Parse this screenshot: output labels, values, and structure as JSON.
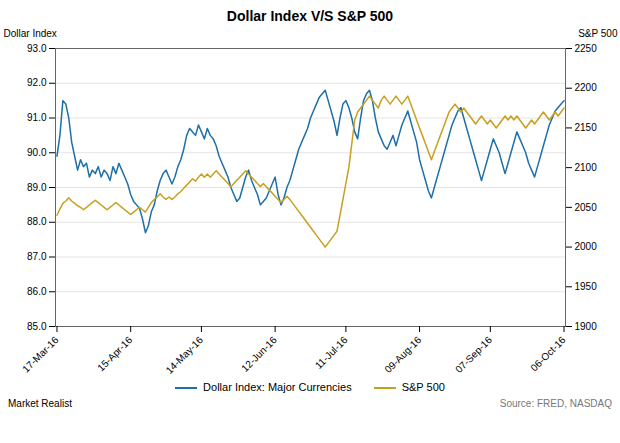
{
  "chart_data": {
    "type": "line",
    "title": "Dollar Index V/S S&P 500",
    "ylabel": "Dollar Index",
    "y2label": "S&P 500",
    "annotations": [
      "Market Realist",
      "Source: FRED, NASDAQ"
    ],
    "legend": "bottom",
    "grid": true,
    "ylim": [
      85.0,
      93.0
    ],
    "yticks": [
      {
        "value": 85.0,
        "label": "85.0"
      },
      {
        "value": 86.0,
        "label": "86.0"
      },
      {
        "value": 87.0,
        "label": "87.0"
      },
      {
        "value": 88.0,
        "label": "88.0"
      },
      {
        "value": 89.0,
        "label": "89.0"
      },
      {
        "value": 90.0,
        "label": "90.0"
      },
      {
        "value": 91.0,
        "label": "91.0"
      },
      {
        "value": 92.0,
        "label": "92.0"
      },
      {
        "value": 93.0,
        "label": "93.0"
      }
    ],
    "y2lim": [
      1900,
      2250
    ],
    "y2ticks": [
      1900,
      1950,
      2000,
      2050,
      2100,
      2150,
      2200,
      2250
    ],
    "categories": [
      "17-Mar-16",
      null,
      null,
      null,
      null,
      null,
      null,
      null,
      null,
      null,
      null,
      null,
      null,
      null,
      null,
      null,
      null,
      null,
      null,
      null,
      null,
      null,
      null,
      null,
      null,
      "15-Apr-16",
      null,
      null,
      null,
      null,
      null,
      null,
      null,
      null,
      null,
      null,
      null,
      null,
      null,
      null,
      null,
      null,
      null,
      null,
      null,
      null,
      null,
      null,
      null,
      "14-May-16",
      null,
      null,
      null,
      null,
      null,
      null,
      null,
      null,
      null,
      null,
      null,
      null,
      null,
      null,
      null,
      null,
      null,
      null,
      null,
      null,
      null,
      null,
      null,
      null,
      "12-Jun-16",
      null,
      null,
      null,
      null,
      null,
      null,
      null,
      null,
      null,
      null,
      null,
      null,
      null,
      null,
      null,
      null,
      null,
      null,
      null,
      null,
      null,
      null,
      null,
      "11-Jul-16",
      null,
      null,
      null,
      null,
      null,
      null,
      null,
      null,
      null,
      null,
      null,
      null,
      null,
      null,
      null,
      null,
      null,
      null,
      null,
      null,
      null,
      null,
      null,
      null,
      "09-Aug-16",
      null,
      null,
      null,
      null,
      null,
      null,
      null,
      null,
      null,
      null,
      null,
      null,
      null,
      null,
      null,
      null,
      null,
      null,
      null,
      null,
      null,
      null,
      null,
      "07-Sep-16",
      null,
      null,
      null,
      null,
      null,
      null,
      null,
      null,
      null,
      null,
      null,
      null,
      null,
      null,
      null,
      null,
      null,
      null,
      null,
      null,
      null,
      null,
      null,
      null,
      "06-Oct-16"
    ],
    "series": [
      {
        "name": "Dollar Index: Major Currencies",
        "color": "#1f6fa8",
        "values": [
          89.9,
          90.5,
          91.5,
          91.4,
          91.0,
          90.3,
          89.9,
          89.5,
          89.8,
          89.6,
          89.7,
          89.3,
          89.5,
          89.4,
          89.6,
          89.3,
          89.5,
          89.4,
          89.2,
          89.6,
          89.4,
          89.7,
          89.5,
          89.3,
          89.1,
          88.8,
          88.6,
          88.5,
          88.4,
          88.1,
          87.7,
          87.9,
          88.3,
          88.5,
          88.9,
          89.2,
          89.4,
          89.5,
          89.3,
          89.1,
          89.3,
          89.6,
          89.8,
          90.1,
          90.5,
          90.7,
          90.6,
          90.5,
          90.8,
          90.6,
          90.4,
          90.7,
          90.5,
          90.4,
          90.2,
          89.9,
          89.7,
          89.5,
          89.3,
          89.0,
          88.8,
          88.6,
          88.7,
          89.0,
          89.3,
          89.5,
          89.2,
          89.0,
          88.8,
          88.5,
          88.6,
          88.7,
          88.9,
          89.1,
          89.3,
          88.8,
          88.5,
          88.7,
          89.0,
          89.2,
          89.5,
          89.8,
          90.1,
          90.3,
          90.5,
          90.7,
          91.0,
          91.2,
          91.4,
          91.6,
          91.7,
          91.8,
          91.5,
          91.2,
          90.9,
          90.5,
          91.0,
          91.4,
          91.5,
          91.3,
          91.0,
          90.6,
          90.4,
          91.0,
          91.5,
          91.7,
          91.8,
          91.5,
          91.0,
          90.6,
          90.4,
          90.2,
          90.1,
          90.3,
          90.5,
          90.2,
          90.5,
          90.8,
          91.0,
          91.2,
          90.9,
          90.6,
          90.3,
          89.8,
          89.5,
          89.2,
          88.9,
          88.7,
          89.0,
          89.3,
          89.6,
          89.9,
          90.2,
          90.5,
          90.8,
          91.0,
          91.2,
          91.3,
          91.0,
          90.7,
          90.4,
          90.1,
          89.8,
          89.5,
          89.2,
          89.5,
          89.8,
          90.1,
          90.4,
          90.2,
          90.0,
          89.7,
          89.4,
          89.7,
          90.0,
          90.3,
          90.6,
          90.4,
          90.2,
          90.0,
          89.7,
          89.5,
          89.3,
          89.6,
          89.9,
          90.2,
          90.5,
          90.8,
          91.0,
          91.2,
          91.3,
          91.4,
          91.5
        ]
      },
      {
        "name": "S&P 500",
        "color": "#c8a020",
        "axis": "y2",
        "values": [
          2040,
          2048,
          2055,
          2058,
          2062,
          2058,
          2055,
          2052,
          2050,
          2047,
          2050,
          2053,
          2056,
          2059,
          2056,
          2053,
          2050,
          2047,
          2050,
          2053,
          2056,
          2053,
          2050,
          2047,
          2044,
          2041,
          2044,
          2047,
          2050,
          2047,
          2044,
          2050,
          2056,
          2060,
          2063,
          2067,
          2063,
          2060,
          2063,
          2060,
          2063,
          2067,
          2070,
          2074,
          2078,
          2082,
          2086,
          2083,
          2088,
          2092,
          2088,
          2092,
          2088,
          2092,
          2096,
          2092,
          2088,
          2084,
          2080,
          2076,
          2080,
          2084,
          2088,
          2092,
          2096,
          2092,
          2088,
          2084,
          2080,
          2076,
          2080,
          2076,
          2072,
          2068,
          2064,
          2060,
          2056,
          2060,
          2064,
          2060,
          2055,
          2050,
          2045,
          2040,
          2035,
          2030,
          2025,
          2020,
          2015,
          2010,
          2005,
          2000,
          2005,
          2010,
          2015,
          2020,
          2040,
          2060,
          2080,
          2100,
          2130,
          2160,
          2170,
          2175,
          2180,
          2185,
          2190,
          2185,
          2180,
          2175,
          2185,
          2190,
          2185,
          2180,
          2185,
          2190,
          2185,
          2180,
          2185,
          2190,
          2180,
          2170,
          2160,
          2150,
          2140,
          2130,
          2120,
          2110,
          2120,
          2130,
          2140,
          2150,
          2160,
          2170,
          2175,
          2180,
          2175,
          2170,
          2175,
          2170,
          2165,
          2160,
          2155,
          2160,
          2165,
          2160,
          2155,
          2160,
          2155,
          2150,
          2155,
          2160,
          2165,
          2160,
          2165,
          2160,
          2165,
          2160,
          2155,
          2150,
          2155,
          2160,
          2155,
          2160,
          2165,
          2170,
          2165,
          2160,
          2165,
          2170,
          2165,
          2170,
          2175
        ]
      }
    ]
  }
}
